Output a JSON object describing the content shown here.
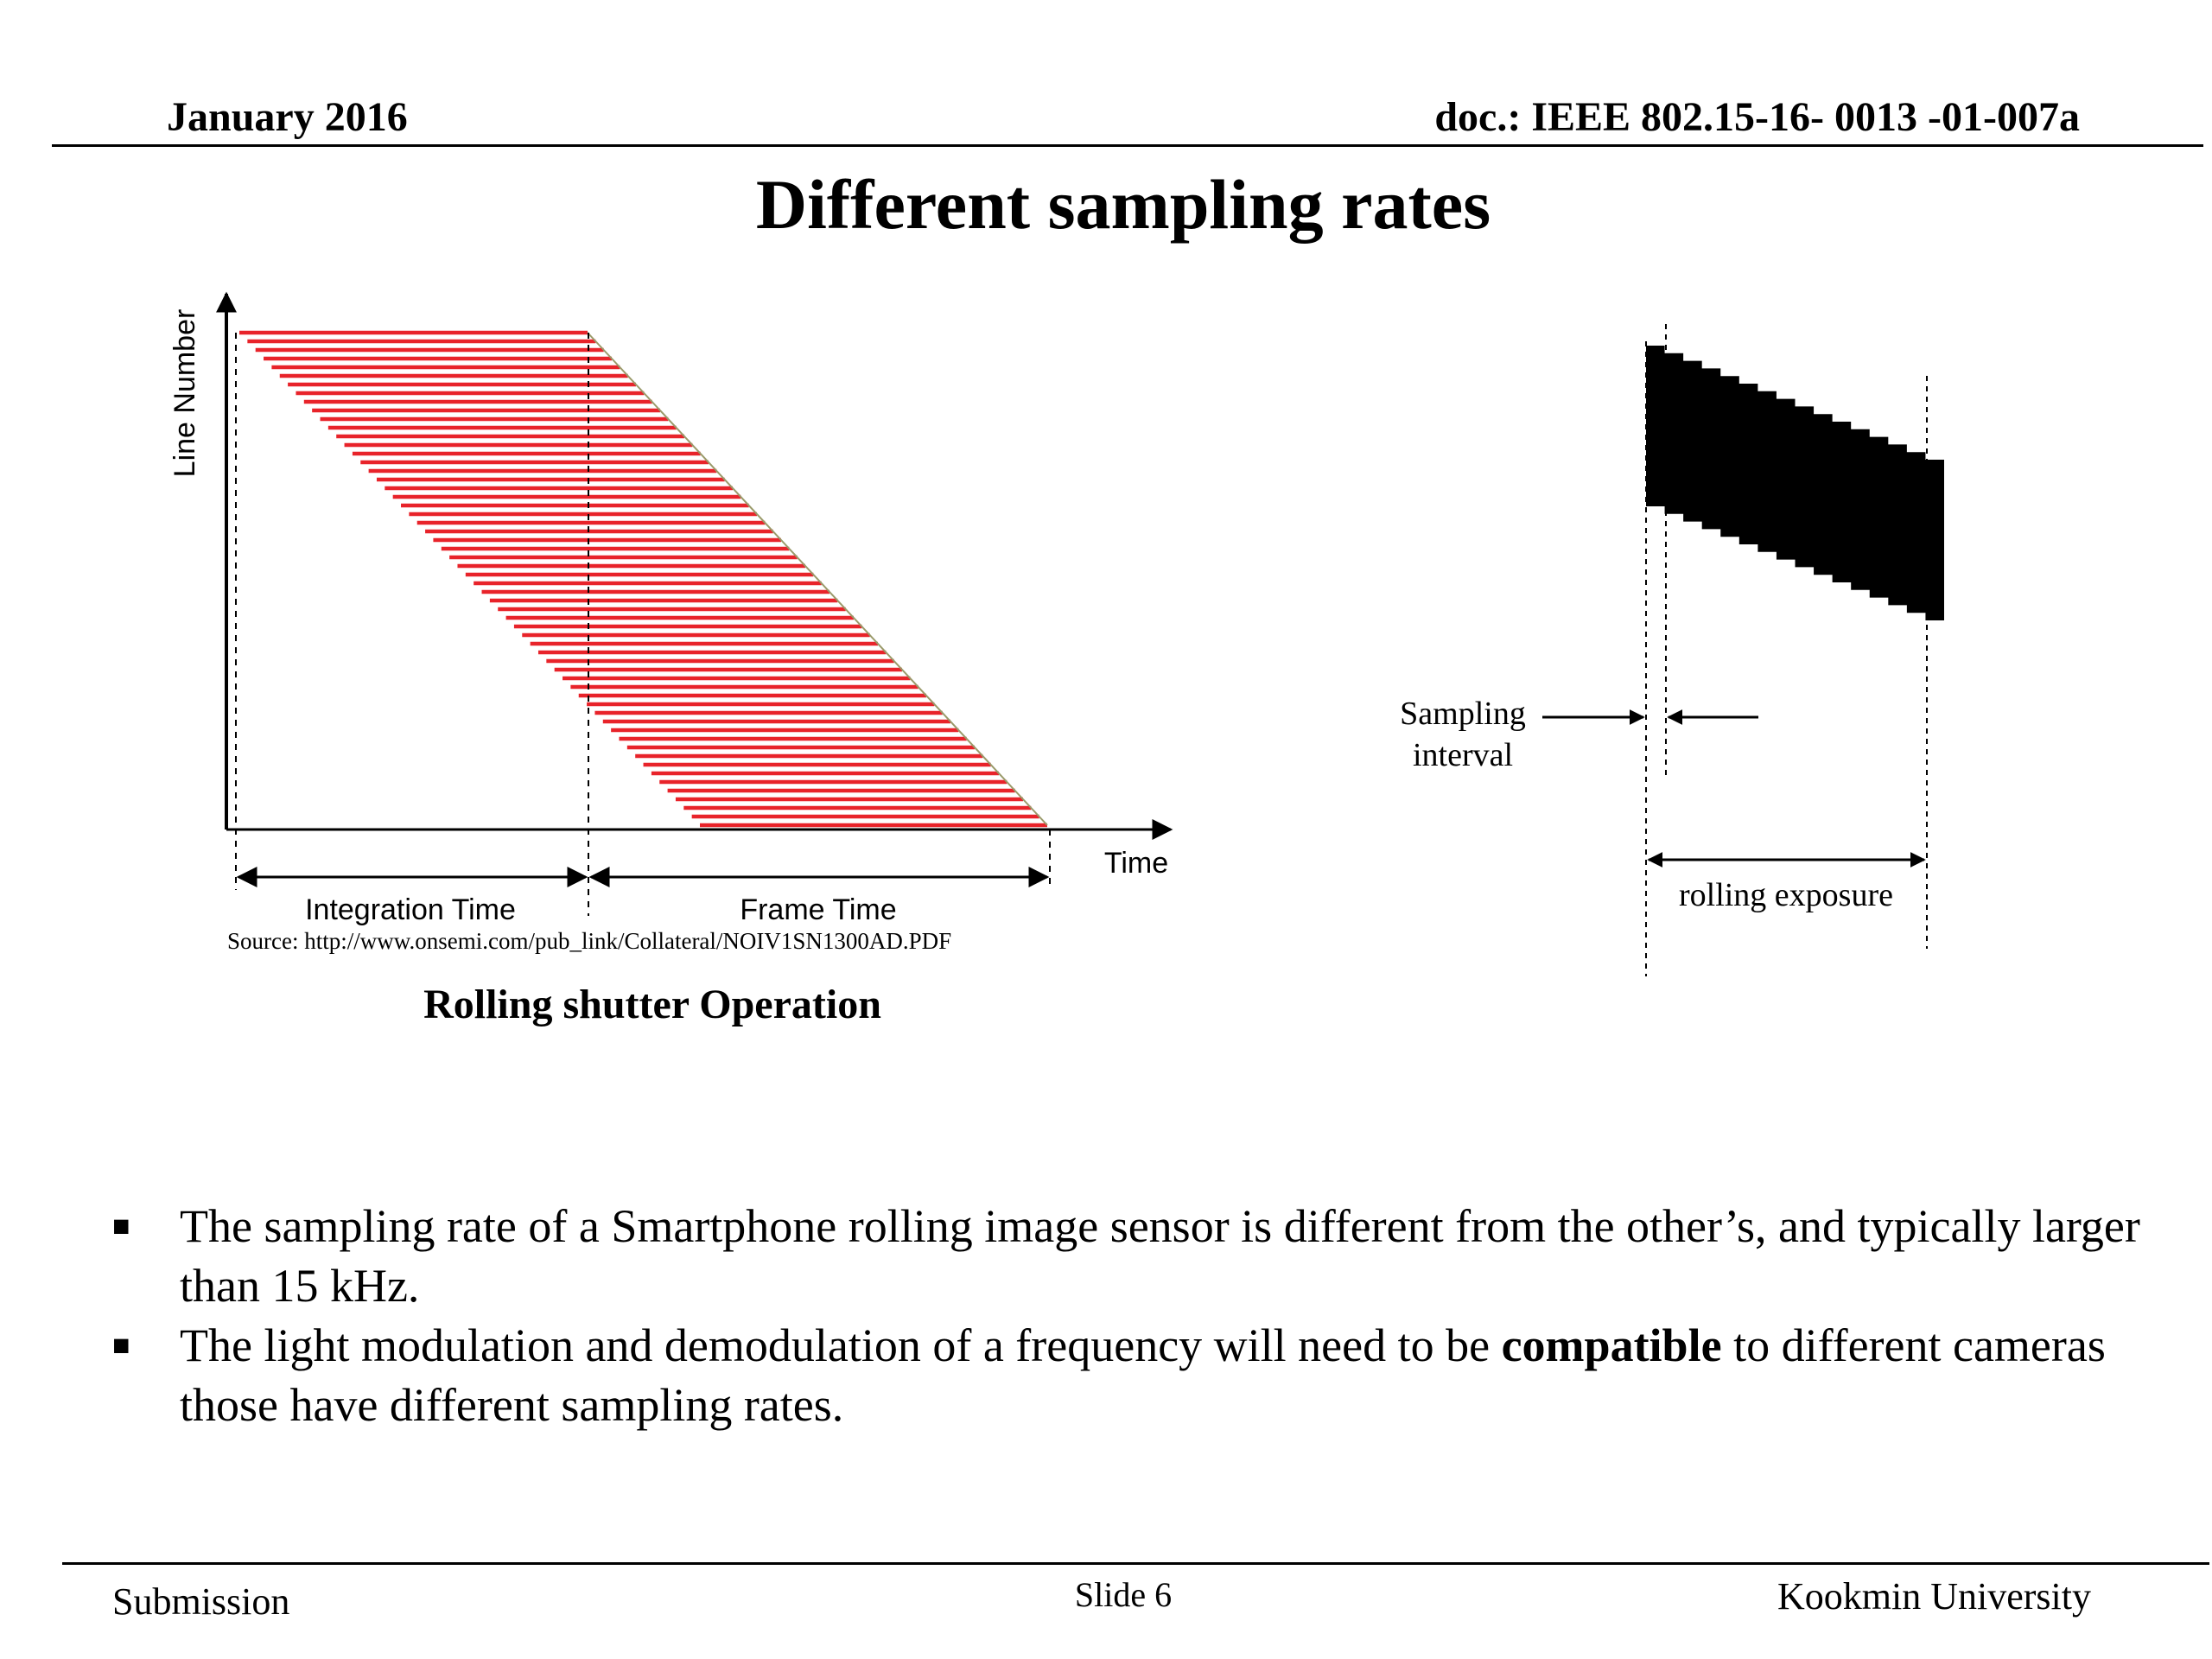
{
  "header": {
    "date": "January 2016",
    "doc_id": "doc.: IEEE 802.15-16- 0013 -01-007a"
  },
  "slide": {
    "title": "Different sampling rates"
  },
  "figure_left": {
    "y_axis_label": "Line Number",
    "x_axis_label": "Time",
    "integration_label": "Integration Time",
    "frame_label": "Frame Time",
    "source": "Source: http://www.onsemi.com/pub_link/Collateral/NOIV1SN1300AD.PDF",
    "caption": "Rolling shutter Operation",
    "stripe_color": "#e8232a"
  },
  "figure_right": {
    "sampling_label_line1": "Sampling",
    "sampling_label_line2": "interval",
    "exposure_label": "rolling exposure",
    "fill_color": "#000000"
  },
  "bullets": [
    {
      "before": "The sampling rate of a Smartphone rolling image sensor is different from the other’s, and typically larger than 15 kHz.",
      "bold": "",
      "after": ""
    },
    {
      "before": "The light modulation and demodulation of a frequency will need to be ",
      "bold": "compatible",
      "after": " to different cameras those have different sampling rates."
    }
  ],
  "footer": {
    "left": "Submission",
    "center": "Slide 6",
    "right": "Kookmin University"
  }
}
